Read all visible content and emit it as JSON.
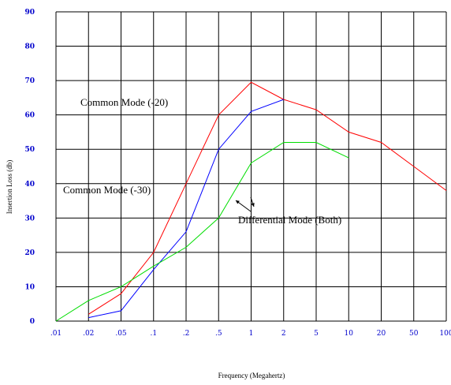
{
  "chart_data": {
    "type": "line",
    "xlabel": "Frequency (Megahertz)",
    "ylabel": "Insertion Loss (db)",
    "x_tick_labels": [
      ".01",
      ".02",
      ".05",
      ".1",
      ".2",
      ".5",
      "1",
      "2",
      "5",
      "10",
      "20",
      "50",
      "100"
    ],
    "x_categories": [
      0.01,
      0.02,
      0.05,
      0.1,
      0.2,
      0.5,
      1,
      2,
      5,
      10,
      20,
      50,
      100
    ],
    "y_tick_labels": [
      "0",
      "10",
      "20",
      "30",
      "40",
      "50",
      "60",
      "70",
      "80",
      "90"
    ],
    "ylim": [
      0,
      90
    ],
    "grid": true,
    "series": [
      {
        "name": "Common Mode (-20)",
        "color": "#ff0000",
        "points": [
          [
            0.02,
            2
          ],
          [
            0.05,
            8
          ],
          [
            0.1,
            20
          ],
          [
            0.2,
            40
          ],
          [
            0.5,
            60
          ],
          [
            1,
            69.5
          ],
          [
            2,
            64.5
          ],
          [
            5,
            61.5
          ],
          [
            10,
            55
          ],
          [
            20,
            52
          ],
          [
            50,
            45
          ],
          [
            100,
            38
          ]
        ]
      },
      {
        "name": "Common Mode (-30)",
        "color": "#0000ff",
        "points": [
          [
            0.02,
            1
          ],
          [
            0.05,
            3
          ],
          [
            0.1,
            15
          ],
          [
            0.2,
            26
          ],
          [
            0.5,
            50
          ],
          [
            1,
            61
          ],
          [
            2,
            64.5
          ]
        ]
      },
      {
        "name": "Differential Mode (Both)",
        "color": "#00dd00",
        "points": [
          [
            0.01,
            0
          ],
          [
            0.02,
            6
          ],
          [
            0.05,
            10
          ],
          [
            0.1,
            16
          ],
          [
            0.2,
            21.5
          ],
          [
            0.5,
            30
          ],
          [
            1,
            46
          ],
          [
            2,
            52
          ],
          [
            5,
            52
          ],
          [
            10,
            47.5
          ]
        ]
      }
    ],
    "annotations": [
      {
        "text": "Common Mode (-20)",
        "series": 0
      },
      {
        "text": "Common Mode (-30)",
        "series": 1
      },
      {
        "text": "Differential Mode (Both)",
        "series": 2
      }
    ]
  }
}
